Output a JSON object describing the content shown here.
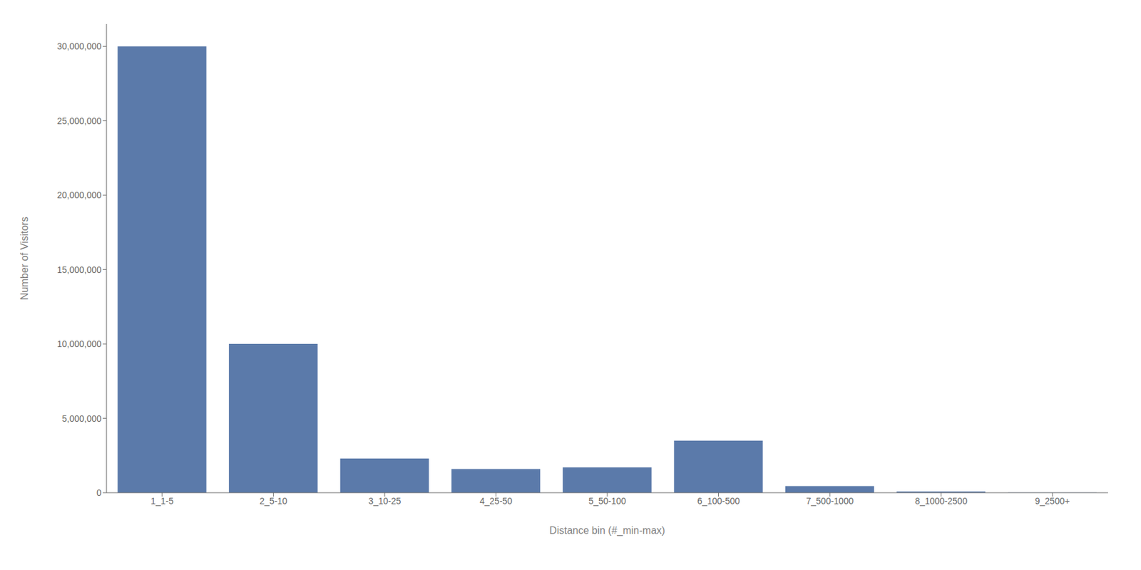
{
  "chart_data": {
    "type": "bar",
    "categories": [
      "1_1-5",
      "2_5-10",
      "3_10-25",
      "4_25-50",
      "5_50-100",
      "6_100-500",
      "7_500-1000",
      "8_1000-2500",
      "9_2500+"
    ],
    "values": [
      30000000,
      10000000,
      2300000,
      1600000,
      1700000,
      3500000,
      450000,
      80000,
      10000
    ],
    "color": "#5b7aaa",
    "xlabel": "Distance bin (#_min-max)",
    "ylabel": "Number of Visitors",
    "ylim": [
      0,
      31500000
    ],
    "yticks": [
      0,
      {
        "value": 5000000,
        "label": "5,000,000"
      },
      {
        "value": 10000000,
        "label": "10,000,000"
      },
      {
        "value": 15000000,
        "label": "15,000,000"
      },
      {
        "value": 20000000,
        "label": "20,000,000"
      },
      {
        "value": 25000000,
        "label": "25,000,000"
      },
      {
        "value": 30000000,
        "label": "30,000,000"
      }
    ],
    "grid": false
  }
}
